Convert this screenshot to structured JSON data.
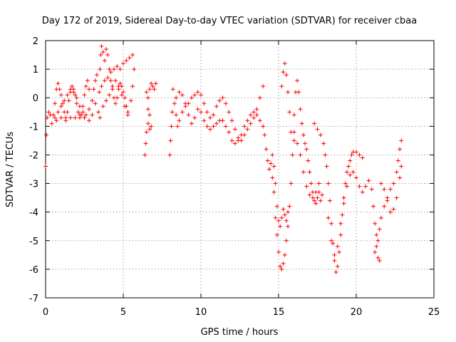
{
  "chart_data": {
    "type": "scatter",
    "title": "Day 172 of 2019, Sidereal Day-to-day VTEC variation (SDTVAR) for receiver cbaa",
    "xlabel": "GPS time / hours",
    "ylabel": "SDTVAR / TECUs",
    "xlim": [
      0,
      25
    ],
    "ylim": [
      -7,
      2
    ],
    "xticks": [
      "0",
      "5",
      "10",
      "15",
      "20",
      "25"
    ],
    "yticks": [
      "-7",
      "-6",
      "-5",
      "-4",
      "-3",
      "-2",
      "-1",
      "0",
      "1",
      "2"
    ],
    "grid": true,
    "marker": "+",
    "color": "#ff0000",
    "series": [
      {
        "points": [
          [
            0.0,
            -2.4
          ],
          [
            0.05,
            -1.3
          ],
          [
            0.1,
            -0.7
          ],
          [
            0.2,
            -0.5
          ],
          [
            0.3,
            -0.6
          ],
          [
            0.4,
            -0.9
          ],
          [
            0.5,
            -0.6
          ],
          [
            0.6,
            -0.2
          ],
          [
            0.7,
            0.3
          ],
          [
            0.8,
            0.5
          ],
          [
            0.9,
            0.3
          ],
          [
            1.0,
            0.1
          ],
          [
            1.1,
            -0.2
          ],
          [
            1.2,
            -0.5
          ],
          [
            1.3,
            -0.7
          ],
          [
            1.4,
            -0.5
          ],
          [
            1.5,
            -0.1
          ],
          [
            1.6,
            0.2
          ],
          [
            1.7,
            0.4
          ],
          [
            1.8,
            0.3
          ],
          [
            1.9,
            0.1
          ],
          [
            2.0,
            -0.2
          ],
          [
            2.1,
            -0.5
          ],
          [
            2.2,
            -0.7
          ],
          [
            2.3,
            -0.6
          ],
          [
            2.4,
            -0.3
          ],
          [
            2.5,
            0.1
          ],
          [
            2.6,
            0.4
          ],
          [
            2.7,
            0.6
          ],
          [
            2.8,
            0.3
          ],
          [
            0.6,
            -0.7
          ],
          [
            0.8,
            -0.5
          ],
          [
            1.0,
            -0.3
          ],
          [
            1.2,
            -0.1
          ],
          [
            1.4,
            0.1
          ],
          [
            1.6,
            0.3
          ],
          [
            1.8,
            0.2
          ],
          [
            2.0,
            0.0
          ],
          [
            2.2,
            -0.3
          ],
          [
            2.4,
            -0.5
          ],
          [
            2.6,
            -0.6
          ],
          [
            2.8,
            -0.4
          ],
          [
            3.0,
            -0.1
          ],
          [
            3.1,
            0.3
          ],
          [
            3.2,
            0.6
          ],
          [
            3.3,
            0.8
          ],
          [
            0.7,
            -0.8
          ],
          [
            1.0,
            -0.7
          ],
          [
            1.3,
            -0.8
          ],
          [
            1.6,
            -0.7
          ],
          [
            1.9,
            -0.7
          ],
          [
            2.2,
            -0.6
          ],
          [
            2.5,
            -0.7
          ],
          [
            2.8,
            -0.8
          ],
          [
            3.0,
            -0.6
          ],
          [
            3.2,
            -0.2
          ],
          [
            3.4,
            -0.5
          ],
          [
            3.5,
            -0.7
          ],
          [
            3.45,
            0.2
          ],
          [
            3.5,
            1.0
          ],
          [
            3.55,
            1.5
          ],
          [
            3.6,
            1.8
          ],
          [
            3.7,
            1.6
          ],
          [
            3.8,
            1.3
          ],
          [
            3.9,
            1.7
          ],
          [
            4.0,
            1.5
          ],
          [
            4.1,
            1.0
          ],
          [
            4.2,
            0.6
          ],
          [
            4.3,
            0.3
          ],
          [
            4.4,
            0.0
          ],
          [
            4.5,
            -0.2
          ],
          [
            4.6,
            0.0
          ],
          [
            4.7,
            0.3
          ],
          [
            4.8,
            0.5
          ],
          [
            4.9,
            0.4
          ],
          [
            5.0,
            0.2
          ],
          [
            5.1,
            0.0
          ],
          [
            5.2,
            -0.3
          ],
          [
            5.3,
            -0.6
          ],
          [
            3.6,
            0.4
          ],
          [
            3.8,
            0.6
          ],
          [
            4.0,
            0.7
          ],
          [
            4.2,
            0.9
          ],
          [
            4.4,
            1.0
          ],
          [
            4.6,
            1.1
          ],
          [
            4.8,
            1.0
          ],
          [
            5.0,
            1.2
          ],
          [
            5.2,
            1.3
          ],
          [
            5.4,
            1.4
          ],
          [
            5.6,
            1.5
          ],
          [
            3.7,
            -0.3
          ],
          [
            3.9,
            -0.1
          ],
          [
            4.1,
            0.1
          ],
          [
            4.3,
            0.4
          ],
          [
            4.5,
            0.6
          ],
          [
            4.7,
            0.4
          ],
          [
            4.9,
            0.1
          ],
          [
            5.1,
            -0.3
          ],
          [
            5.3,
            -0.5
          ],
          [
            5.5,
            -0.1
          ],
          [
            5.6,
            0.4
          ],
          [
            5.7,
            1.0
          ],
          [
            6.4,
            -2.0
          ],
          [
            6.45,
            -1.6
          ],
          [
            6.5,
            -1.2
          ],
          [
            6.6,
            -0.9
          ],
          [
            6.7,
            -1.1
          ],
          [
            6.8,
            -1.0
          ],
          [
            6.6,
            0.0
          ],
          [
            6.7,
            0.3
          ],
          [
            6.8,
            0.5
          ],
          [
            6.9,
            0.4
          ],
          [
            7.0,
            0.3
          ],
          [
            7.1,
            0.5
          ],
          [
            6.5,
            0.2
          ],
          [
            6.6,
            -0.4
          ],
          [
            6.7,
            -0.6
          ],
          [
            8.0,
            -2.0
          ],
          [
            8.05,
            -1.5
          ],
          [
            8.1,
            -1.0
          ],
          [
            8.15,
            -0.5
          ],
          [
            8.2,
            0.3
          ],
          [
            8.3,
            -0.2
          ],
          [
            8.4,
            -0.6
          ],
          [
            8.5,
            -1.0
          ],
          [
            8.6,
            -0.8
          ],
          [
            8.8,
            -0.5
          ],
          [
            9.0,
            -0.3
          ],
          [
            9.2,
            -0.2
          ],
          [
            9.4,
            0.0
          ],
          [
            9.6,
            0.1
          ],
          [
            9.8,
            0.2
          ],
          [
            10.0,
            0.1
          ],
          [
            10.2,
            -0.2
          ],
          [
            10.4,
            -0.5
          ],
          [
            10.6,
            -0.7
          ],
          [
            10.8,
            -0.6
          ],
          [
            11.0,
            -0.3
          ],
          [
            11.2,
            -0.1
          ],
          [
            11.4,
            0.0
          ],
          [
            11.6,
            -0.2
          ],
          [
            11.8,
            -0.5
          ],
          [
            12.0,
            -0.8
          ],
          [
            12.2,
            -1.1
          ],
          [
            12.4,
            -1.4
          ],
          [
            12.6,
            -1.5
          ],
          [
            12.8,
            -1.3
          ],
          [
            13.0,
            -1.1
          ],
          [
            13.2,
            -0.9
          ],
          [
            13.4,
            -0.7
          ],
          [
            13.6,
            -0.4
          ],
          [
            13.8,
            0.0
          ],
          [
            14.0,
            0.4
          ],
          [
            8.4,
            0.0
          ],
          [
            8.6,
            0.2
          ],
          [
            8.8,
            0.1
          ],
          [
            9.0,
            -0.2
          ],
          [
            9.2,
            -0.6
          ],
          [
            9.4,
            -0.9
          ],
          [
            9.6,
            -0.7
          ],
          [
            9.8,
            -0.4
          ],
          [
            10.0,
            -0.5
          ],
          [
            10.2,
            -0.8
          ],
          [
            10.4,
            -1.0
          ],
          [
            10.6,
            -1.1
          ],
          [
            10.8,
            -1.0
          ],
          [
            11.0,
            -0.9
          ],
          [
            11.2,
            -0.8
          ],
          [
            11.4,
            -0.8
          ],
          [
            11.6,
            -1.0
          ],
          [
            11.8,
            -1.2
          ],
          [
            12.0,
            -1.5
          ],
          [
            12.2,
            -1.6
          ],
          [
            12.4,
            -1.5
          ],
          [
            12.6,
            -1.3
          ],
          [
            12.8,
            -1.0
          ],
          [
            13.0,
            -0.8
          ],
          [
            13.2,
            -0.6
          ],
          [
            13.4,
            -0.5
          ],
          [
            13.6,
            -0.6
          ],
          [
            13.8,
            -0.8
          ],
          [
            14.0,
            -1.0
          ],
          [
            14.1,
            -1.3
          ],
          [
            14.2,
            -1.8
          ],
          [
            14.3,
            -2.2
          ],
          [
            14.4,
            -2.5
          ],
          [
            14.5,
            -2.3
          ],
          [
            14.6,
            -2.0
          ],
          [
            14.7,
            -2.4
          ],
          [
            14.8,
            -3.0
          ],
          [
            14.9,
            -3.8
          ],
          [
            15.0,
            -4.3
          ],
          [
            15.1,
            -4.5
          ],
          [
            15.2,
            -4.2
          ],
          [
            15.3,
            -3.9
          ],
          [
            15.4,
            -4.1
          ],
          [
            15.5,
            -4.3
          ],
          [
            15.6,
            -4.0
          ],
          [
            14.6,
            -2.8
          ],
          [
            14.7,
            -3.3
          ],
          [
            14.8,
            -4.2
          ],
          [
            14.9,
            -4.8
          ],
          [
            15.0,
            -5.4
          ],
          [
            15.1,
            -5.9
          ],
          [
            15.2,
            -6.0
          ],
          [
            15.3,
            -5.8
          ],
          [
            15.4,
            -5.5
          ],
          [
            15.5,
            -5.0
          ],
          [
            15.6,
            -4.5
          ],
          [
            15.7,
            -3.8
          ],
          [
            15.8,
            -3.0
          ],
          [
            15.9,
            -2.0
          ],
          [
            16.0,
            -1.5
          ],
          [
            15.2,
            0.4
          ],
          [
            15.3,
            0.9
          ],
          [
            15.4,
            1.2
          ],
          [
            15.5,
            0.8
          ],
          [
            15.6,
            0.2
          ],
          [
            15.7,
            -0.5
          ],
          [
            15.8,
            -1.2
          ],
          [
            16.0,
            -0.6
          ],
          [
            16.1,
            0.2
          ],
          [
            16.2,
            0.6
          ],
          [
            16.3,
            0.2
          ],
          [
            16.4,
            -0.4
          ],
          [
            16.5,
            -0.9
          ],
          [
            16.6,
            -1.3
          ],
          [
            16.7,
            -1.6
          ],
          [
            16.8,
            -1.8
          ],
          [
            16.9,
            -2.2
          ],
          [
            17.0,
            -2.6
          ],
          [
            17.1,
            -3.0
          ],
          [
            17.2,
            -3.3
          ],
          [
            17.3,
            -3.6
          ],
          [
            17.4,
            -3.7
          ],
          [
            17.5,
            -3.5
          ],
          [
            17.6,
            -3.3
          ],
          [
            17.7,
            -3.6
          ],
          [
            16.0,
            -1.2
          ],
          [
            16.2,
            -1.6
          ],
          [
            16.4,
            -2.0
          ],
          [
            16.6,
            -2.6
          ],
          [
            16.8,
            -3.1
          ],
          [
            17.0,
            -3.4
          ],
          [
            17.2,
            -3.5
          ],
          [
            17.4,
            -3.3
          ],
          [
            17.6,
            -3.0
          ],
          [
            17.8,
            -3.4
          ],
          [
            17.3,
            -0.9
          ],
          [
            17.5,
            -1.1
          ],
          [
            17.7,
            -1.3
          ],
          [
            17.9,
            -1.6
          ],
          [
            18.0,
            -2.0
          ],
          [
            18.1,
            -2.4
          ],
          [
            18.2,
            -3.0
          ],
          [
            18.3,
            -3.6
          ],
          [
            18.4,
            -4.4
          ],
          [
            18.5,
            -5.1
          ],
          [
            18.6,
            -5.7
          ],
          [
            18.7,
            -6.1
          ],
          [
            18.8,
            -5.9
          ],
          [
            18.9,
            -5.4
          ],
          [
            19.0,
            -4.8
          ],
          [
            19.1,
            -4.1
          ],
          [
            19.2,
            -3.5
          ],
          [
            19.3,
            -3.0
          ],
          [
            19.4,
            -2.6
          ],
          [
            19.5,
            -2.4
          ],
          [
            19.6,
            -2.2
          ],
          [
            19.7,
            -2.0
          ],
          [
            19.8,
            -1.9
          ],
          [
            20.0,
            -1.9
          ],
          [
            20.2,
            -2.0
          ],
          [
            20.4,
            -2.1
          ],
          [
            18.2,
            -4.2
          ],
          [
            18.4,
            -5.0
          ],
          [
            18.6,
            -5.5
          ],
          [
            18.8,
            -5.2
          ],
          [
            19.0,
            -4.4
          ],
          [
            19.2,
            -3.7
          ],
          [
            19.4,
            -3.1
          ],
          [
            19.6,
            -2.7
          ],
          [
            19.8,
            -2.6
          ],
          [
            20.0,
            -2.8
          ],
          [
            20.2,
            -3.1
          ],
          [
            20.4,
            -3.3
          ],
          [
            20.6,
            -3.1
          ],
          [
            20.8,
            -2.9
          ],
          [
            21.0,
            -3.2
          ],
          [
            21.1,
            -3.8
          ],
          [
            21.2,
            -4.4
          ],
          [
            21.3,
            -4.8
          ],
          [
            21.4,
            -5.0
          ],
          [
            21.5,
            -4.6
          ],
          [
            21.6,
            -4.2
          ],
          [
            21.8,
            -3.8
          ],
          [
            22.0,
            -3.5
          ],
          [
            22.2,
            -3.2
          ],
          [
            22.4,
            -3.0
          ],
          [
            22.6,
            -2.6
          ],
          [
            22.7,
            -2.2
          ],
          [
            22.8,
            -1.8
          ],
          [
            22.9,
            -1.5
          ],
          [
            21.2,
            -5.4
          ],
          [
            21.4,
            -5.6
          ],
          [
            21.5,
            -5.7
          ],
          [
            21.3,
            -5.2
          ],
          [
            21.6,
            -3.0
          ],
          [
            21.8,
            -3.2
          ],
          [
            22.0,
            -3.6
          ],
          [
            22.2,
            -4.0
          ],
          [
            22.4,
            -3.9
          ],
          [
            22.6,
            -3.5
          ],
          [
            22.8,
            -2.8
          ],
          [
            22.9,
            -2.4
          ]
        ]
      }
    ]
  }
}
